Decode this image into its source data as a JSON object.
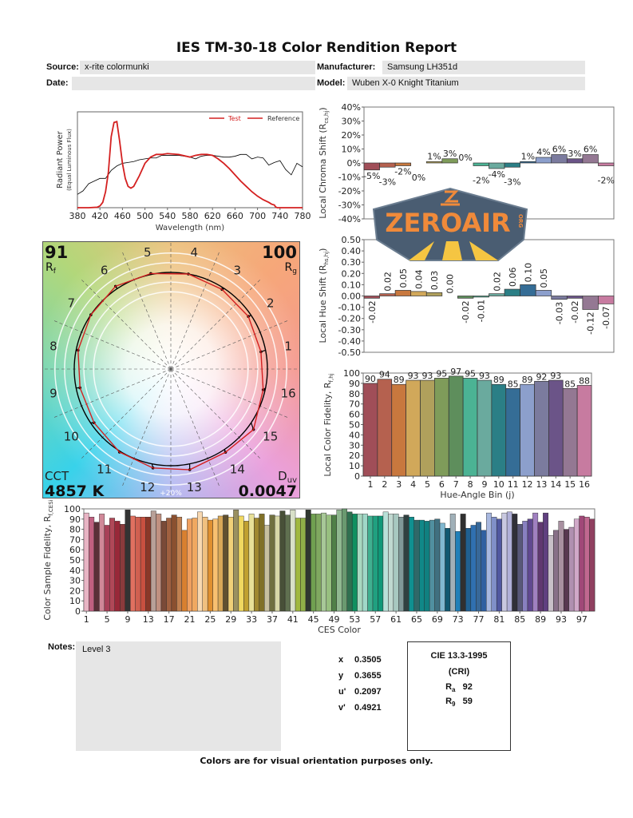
{
  "report": {
    "title": "IES TM-30-18 Color Rendition Report",
    "source_label": "Source:",
    "source": "x-rite colormunki",
    "date_label": "Date:",
    "date": "",
    "manufacturer_label": "Manufacturer:",
    "manufacturer": "Samsung LH351d",
    "model_label": "Model:",
    "model": "Wuben X-0 Knight Titanium",
    "notes_label": "Notes:",
    "notes": "Level 3",
    "footer": "Colors are for visual orientation purposes only."
  },
  "chromaticity": [
    {
      "label": "x",
      "value": "0.3505"
    },
    {
      "label": "y",
      "value": "0.3655"
    },
    {
      "label": "u'",
      "value": "0.2097"
    },
    {
      "label": "v'",
      "value": "0.4921"
    }
  ],
  "cie": {
    "title": "CIE 13.3-1995",
    "subtitle": "(CRI)",
    "ra_label": "R",
    "ra_sub": "a",
    "ra": "92",
    "r9_label": "R",
    "r9_sub": "9",
    "r9": "59"
  },
  "vector_graphic": {
    "rf": "91",
    "rf_label": "R",
    "rf_sub": "f",
    "rg": "100",
    "rg_label": "R",
    "rg_sub": "g",
    "cct_label": "CCT",
    "cct": "4857 K",
    "duv_label": "D",
    "duv_sub": "uv",
    "duv": "0.0047",
    "ring_label": "+20%",
    "reference_color": "#000000",
    "test_color": "#d42020"
  },
  "logo": {
    "text": "ZEROAIR",
    "suffix": "ORG"
  },
  "chart_data": [
    {
      "id": "spectrum",
      "type": "line",
      "xlabel": "Wavelength (nm)",
      "ylabel": "Radiant Power",
      "ylabel2": "(Equal Luminous Flux)",
      "xlim": [
        380,
        780
      ],
      "xticks": [
        380,
        420,
        460,
        500,
        540,
        580,
        620,
        660,
        700,
        740,
        780
      ],
      "legend_position": "top-right",
      "series": [
        {
          "name": "Test",
          "color": "#d42020",
          "x": [
            380,
            400,
            415,
            420,
            425,
            430,
            435,
            440,
            445,
            450,
            455,
            460,
            465,
            470,
            475,
            480,
            490,
            500,
            510,
            520,
            530,
            540,
            560,
            580,
            590,
            600,
            610,
            620,
            630,
            640,
            650,
            660,
            670,
            680,
            690,
            700,
            710,
            720,
            725,
            730,
            732,
            735,
            780
          ],
          "y": [
            0,
            0,
            0.005,
            0.02,
            0.06,
            0.18,
            0.4,
            0.8,
            0.96,
            0.97,
            0.75,
            0.5,
            0.33,
            0.24,
            0.22,
            0.24,
            0.36,
            0.5,
            0.57,
            0.6,
            0.6,
            0.61,
            0.6,
            0.57,
            0.59,
            0.6,
            0.6,
            0.59,
            0.55,
            0.5,
            0.44,
            0.37,
            0.3,
            0.24,
            0.18,
            0.13,
            0.09,
            0.06,
            0.04,
            0.03,
            0.01,
            0,
            0
          ]
        },
        {
          "name": "Reference",
          "color": "#000000",
          "x": [
            380,
            390,
            400,
            410,
            420,
            430,
            440,
            450,
            460,
            470,
            480,
            490,
            500,
            510,
            520,
            530,
            540,
            550,
            560,
            570,
            580,
            590,
            600,
            610,
            620,
            630,
            640,
            650,
            660,
            670,
            680,
            690,
            700,
            710,
            720,
            730,
            740,
            750,
            760,
            770,
            780
          ],
          "y": [
            0.15,
            0.19,
            0.27,
            0.3,
            0.33,
            0.33,
            0.42,
            0.47,
            0.5,
            0.51,
            0.52,
            0.54,
            0.55,
            0.56,
            0.56,
            0.59,
            0.59,
            0.59,
            0.59,
            0.58,
            0.57,
            0.55,
            0.58,
            0.59,
            0.59,
            0.58,
            0.57,
            0.57,
            0.58,
            0.6,
            0.6,
            0.55,
            0.57,
            0.56,
            0.48,
            0.51,
            0.53,
            0.43,
            0.37,
            0.5,
            0.46
          ]
        }
      ]
    },
    {
      "id": "chroma-shift",
      "type": "bar",
      "ylabel": "Local Chroma Shift (R",
      "ylabel_sub": "cs,hj",
      "ylabel_end": ")",
      "ylim": [
        -40,
        40
      ],
      "yticks": [
        -40,
        -30,
        -20,
        -10,
        0,
        10,
        20,
        30,
        40
      ],
      "unit": "%",
      "categories": [
        1,
        2,
        3,
        4,
        5,
        6,
        7,
        8,
        9,
        10,
        11,
        12,
        13,
        14,
        15,
        16
      ],
      "values": [
        -5,
        -3,
        -2,
        0,
        1,
        3,
        0,
        -2,
        -4,
        -3,
        1,
        4,
        6,
        3,
        6,
        -2
      ],
      "labels": [
        "-5%",
        "-3%",
        "-2%",
        "0%",
        "1%",
        "3%",
        "0%",
        "-2%",
        "-4%",
        "-3%",
        "1%",
        "4%",
        "6%",
        "3%",
        "6%",
        "-2%"
      ]
    },
    {
      "id": "hue-shift",
      "type": "bar",
      "ylabel": "Local Hue Shift (R",
      "ylabel_sub": "hs,hj",
      "ylabel_end": ")",
      "ylim": [
        -0.5,
        0.5
      ],
      "yticks": [
        -0.5,
        -0.4,
        -0.3,
        -0.2,
        -0.1,
        0,
        0.1,
        0.2,
        0.3,
        0.4,
        0.5
      ],
      "categories": [
        1,
        2,
        3,
        4,
        5,
        6,
        7,
        8,
        9,
        10,
        11,
        12,
        13,
        14,
        15,
        16
      ],
      "values": [
        -0.02,
        0.02,
        0.05,
        0.04,
        0.03,
        0.0,
        -0.02,
        -0.01,
        0.02,
        0.06,
        0.1,
        0.05,
        -0.03,
        -0.02,
        -0.12,
        -0.07
      ],
      "labels": [
        "-0.02",
        "0.02",
        "0.05",
        "0.04",
        "0.03",
        "0.00",
        "-0.02",
        "-0.01",
        "0.02",
        "0.06",
        "0.10",
        "0.05",
        "-0.03",
        "-0.02",
        "-0.12",
        "-0.07"
      ]
    },
    {
      "id": "local-fidelity",
      "type": "bar",
      "xlabel": "Hue-Angle Bin (j)",
      "ylabel": "Local Color Fidelity, R",
      "ylabel_sub": "f,hj",
      "ylim": [
        0,
        100
      ],
      "yticks": [
        0,
        10,
        20,
        30,
        40,
        50,
        60,
        70,
        80,
        90,
        100
      ],
      "categories": [
        1,
        2,
        3,
        4,
        5,
        6,
        7,
        8,
        9,
        10,
        11,
        12,
        13,
        14,
        15,
        16
      ],
      "values": [
        90,
        94,
        89,
        93,
        93,
        95,
        97,
        95,
        93,
        89,
        85,
        89,
        92,
        93,
        85,
        88
      ]
    },
    {
      "id": "ces-fidelity",
      "type": "bar",
      "xlabel": "CES Color",
      "ylabel": "Color Sample Fidelity, R",
      "ylabel_sub": "f,CESi",
      "ylim": [
        0,
        100
      ],
      "yticks": [
        0,
        10,
        20,
        30,
        40,
        50,
        60,
        70,
        80,
        90,
        100
      ],
      "xticks": [
        1,
        5,
        9,
        13,
        17,
        21,
        25,
        29,
        33,
        37,
        41,
        45,
        49,
        53,
        57,
        61,
        65,
        69,
        73,
        77,
        81,
        85,
        89,
        93,
        97
      ],
      "values": [
        96,
        92,
        87,
        95,
        84,
        91,
        88,
        85,
        99,
        93,
        92,
        92,
        92,
        98,
        95,
        88,
        91,
        94,
        92,
        79,
        90,
        91,
        97,
        92,
        89,
        90,
        93,
        94,
        92,
        99,
        93,
        88,
        95,
        91,
        95,
        84,
        94,
        93,
        98,
        94,
        99,
        91,
        91,
        99,
        95,
        95,
        96,
        94,
        94,
        99,
        100,
        97,
        95,
        95,
        95,
        93,
        93,
        93,
        97,
        95,
        95,
        92,
        94,
        92,
        89,
        89,
        88,
        89,
        90,
        86,
        81,
        95,
        78,
        95,
        81,
        84,
        87,
        79,
        96,
        92,
        90,
        96,
        97,
        95,
        85,
        88,
        90,
        96,
        87,
        96,
        74,
        79,
        88,
        80,
        82,
        90,
        93,
        92,
        90
      ],
      "colors": [
        "#e8b4c4",
        "#c06080",
        "#5a3038",
        "#d08898",
        "#a84058",
        "#b04858",
        "#982838",
        "#8a3a3c",
        "#333333",
        "#e07060",
        "#d06050",
        "#c85040",
        "#8a3828",
        "#b8a098",
        "#c09080",
        "#7a4a38",
        "#a06040",
        "#8a5030",
        "#c08050",
        "#d88030",
        "#f0a060",
        "#f0a860",
        "#f8d8b0",
        "#f0c080",
        "#e09030",
        "#f8c070",
        "#d8a858",
        "#605030",
        "#f0d078",
        "#9a9060",
        "#f0d860",
        "#c0a030",
        "#e8e098",
        "#a08830",
        "#807028",
        "#c8c0a0",
        "#707040",
        "#d8d8a8",
        "#485038",
        "#607050",
        "#d8e0c8",
        "#a0b840",
        "#90b048",
        "#303830",
        "#70a050",
        "#80a860",
        "#a8c898",
        "#98c080",
        "#508048",
        "#90b890",
        "#6a9a70",
        "#307050",
        "#109060",
        "#a8d8c0",
        "#a0d8c8",
        "#40b090",
        "#20a080",
        "#109878",
        "#b8e0d8",
        "#c0d8d0",
        "#a8c8c0",
        "#809898",
        "#304040",
        "#109090",
        "#306868",
        "#108888",
        "#108080",
        "#5090a0",
        "#407080",
        "#80b8d0",
        "#105870",
        "#a0b0b8",
        "#2080b8",
        "#303030",
        "#206090",
        "#3070b0",
        "#386898",
        "#3060a0",
        "#a8b8e0",
        "#8090c8",
        "#5058a0",
        "#c8c8e0",
        "#b0b0d8",
        "#303038",
        "#585878",
        "#8880c0",
        "#604890",
        "#a080c0",
        "#603870",
        "#604080",
        "#c8c0c8",
        "#887088",
        "#a890a0",
        "#583850",
        "#b090b0",
        "#d0a8c8",
        "#a04878",
        "#c06890",
        "#904060"
      ]
    }
  ],
  "bin_colors": [
    "#a04e58",
    "#b5614f",
    "#c8783e",
    "#d1a85a",
    "#b0a05c",
    "#7f9c5a",
    "#5e8e5c",
    "#4bb394",
    "#6aaa9e",
    "#2b7f86",
    "#356d96",
    "#8c9fcc",
    "#7b7b9e",
    "#6b5488",
    "#947893",
    "#c77ba0"
  ]
}
